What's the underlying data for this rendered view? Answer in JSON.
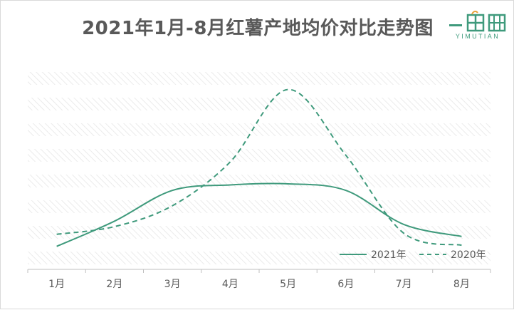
{
  "title": "2021年1月-8月红薯产地均价对比走势图",
  "logo": {
    "text": "YIMUTIAN",
    "color": "#3f9a7c"
  },
  "chart_data": {
    "type": "line",
    "title": "2021年1月-8月红薯产地均价对比走势图",
    "categories": [
      "1月",
      "2月",
      "3月",
      "4月",
      "5月",
      "6月",
      "7月",
      "8月"
    ],
    "series": [
      {
        "name": "2021年",
        "style": "solid",
        "color": "#3f9a7c",
        "values": [
          1.05,
          2.2,
          3.6,
          3.85,
          3.9,
          3.6,
          2.05,
          1.5
        ]
      },
      {
        "name": "2020年",
        "style": "dashed",
        "color": "#3f9a7c",
        "values": [
          1.6,
          1.95,
          2.9,
          4.9,
          8.2,
          5.2,
          1.65,
          1.1
        ]
      }
    ],
    "ylim": [
      0,
      9
    ],
    "y_axis_visible": false,
    "grid": "diagonal-hatched background bands",
    "legend": "bottom-right",
    "xlabel": "",
    "ylabel": ""
  }
}
